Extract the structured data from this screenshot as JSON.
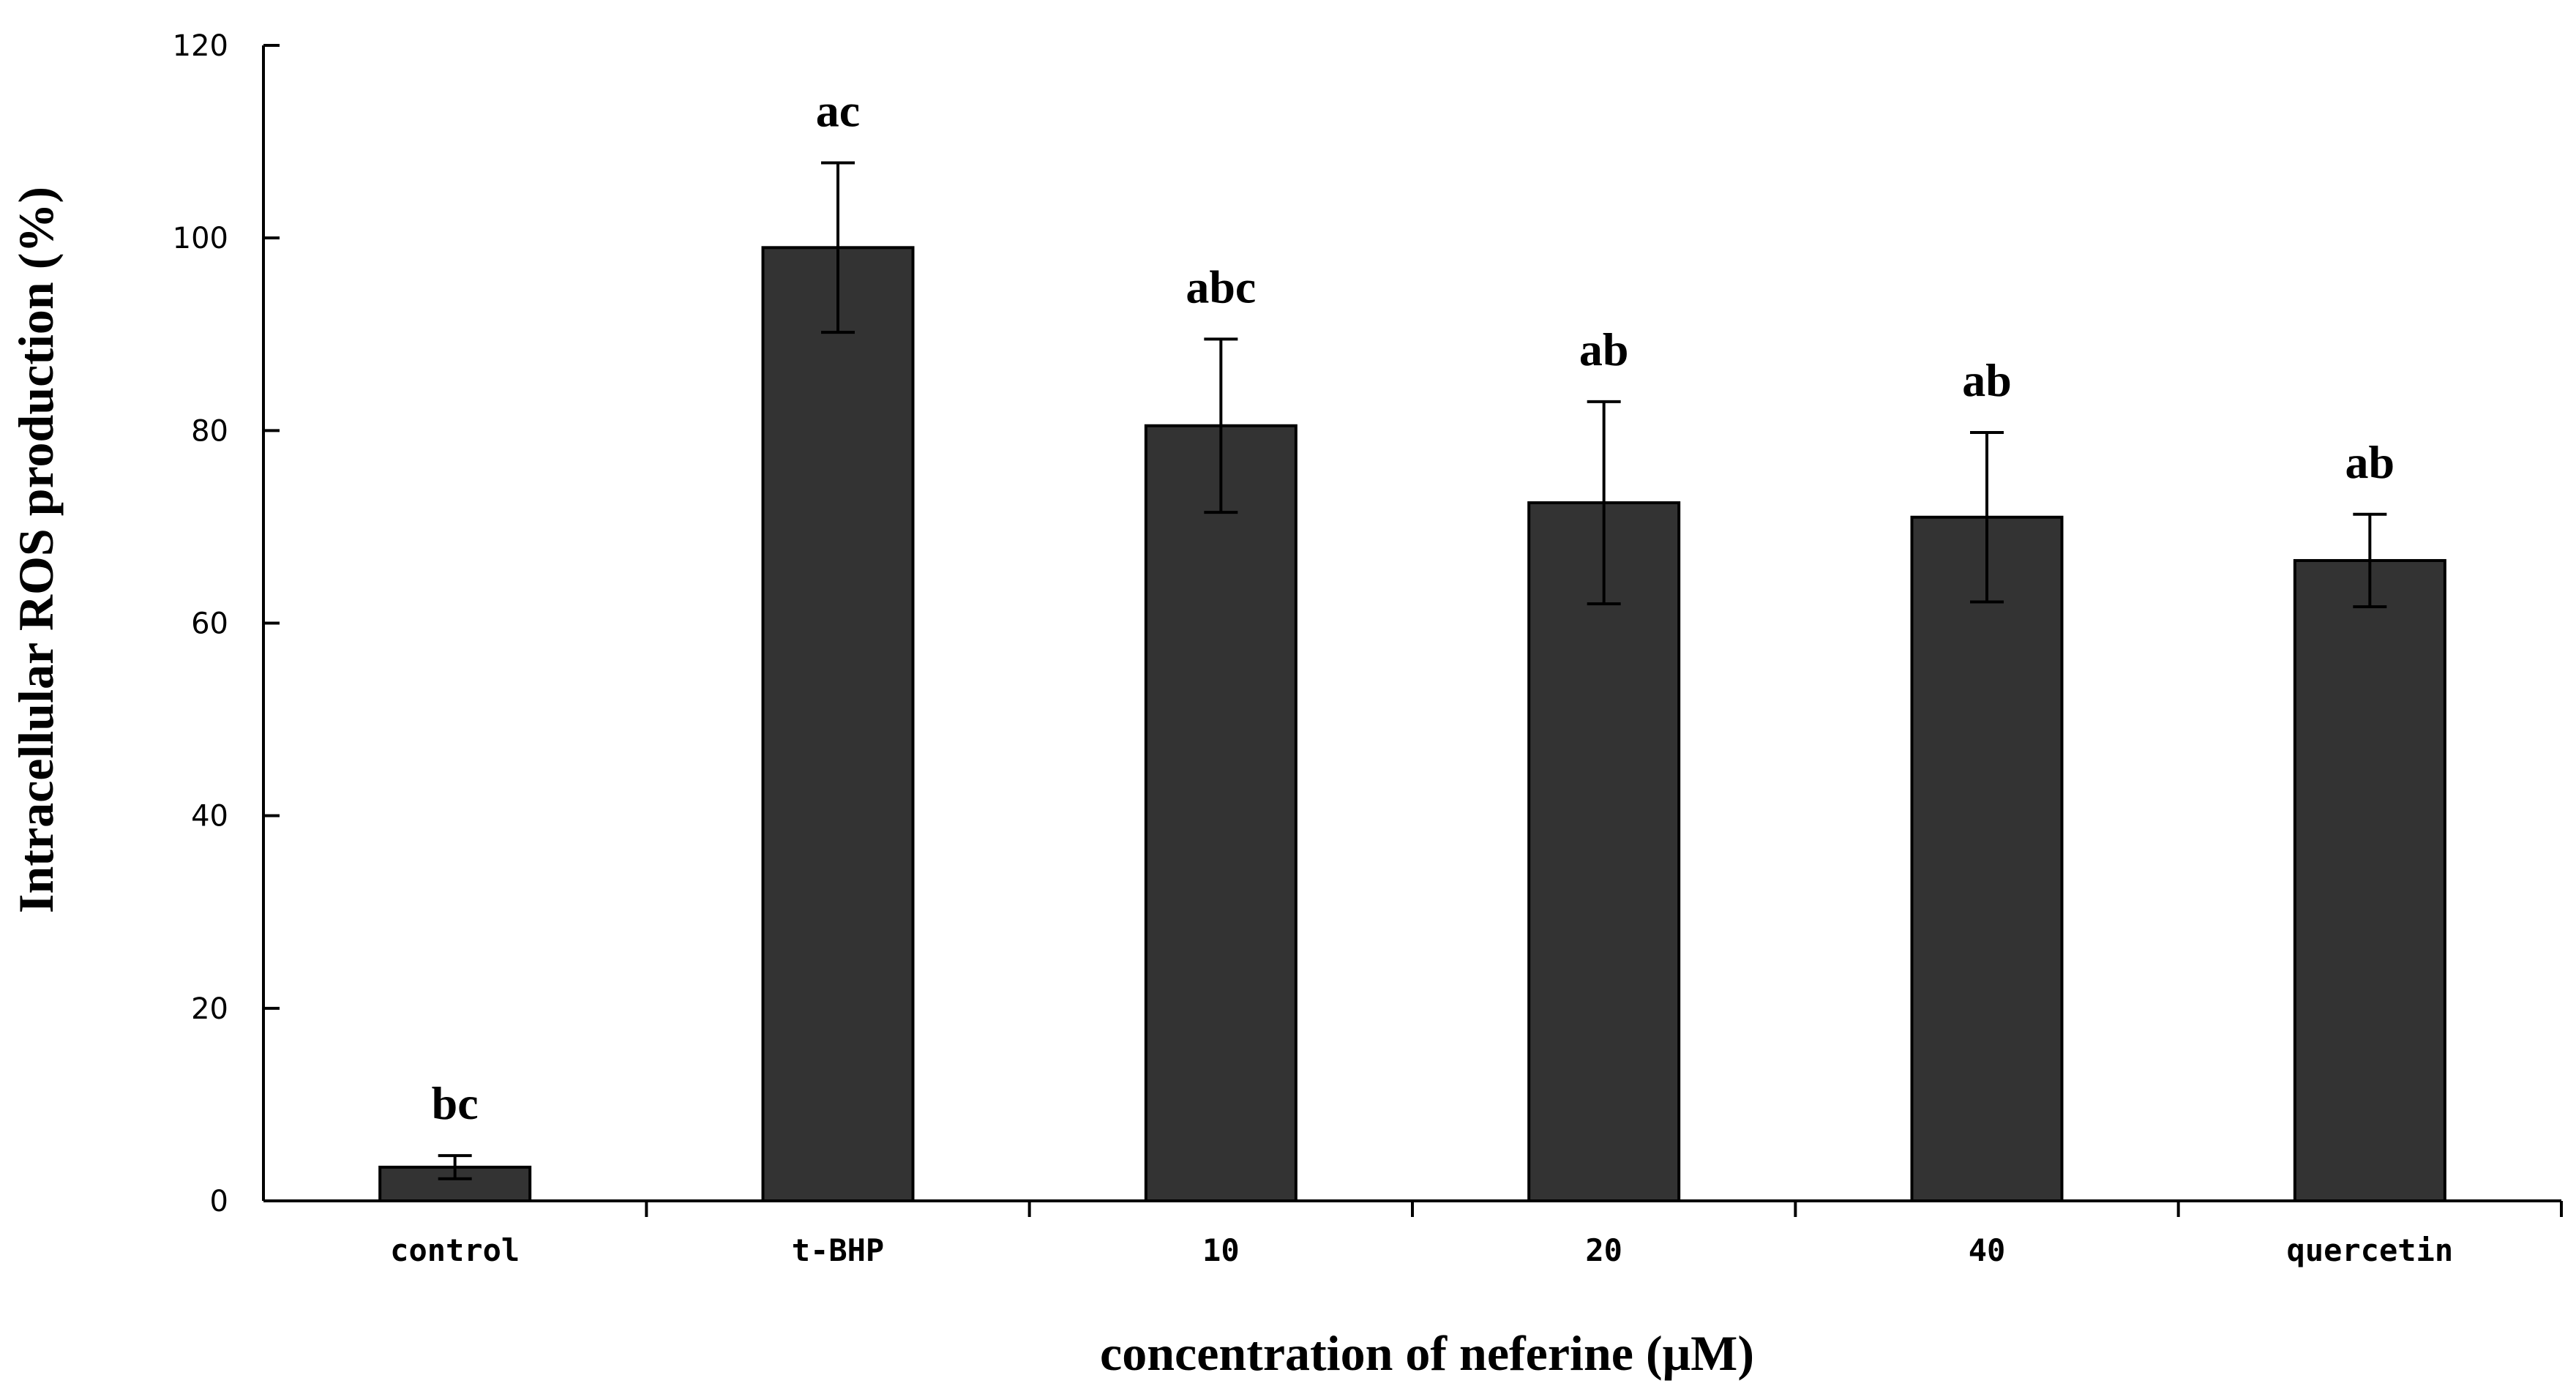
{
  "chart_data": {
    "type": "bar",
    "categories": [
      "control",
      "t-BHP",
      "10",
      "20",
      "40",
      "quercetin"
    ],
    "values": [
      3.5,
      99,
      80.5,
      72.5,
      71,
      66.5
    ],
    "errors": [
      1.2,
      8.8,
      9,
      10.5,
      8.8,
      4.8
    ],
    "significance": [
      "bc",
      "ac",
      "abc",
      "ab",
      "ab",
      "ab"
    ],
    "xlabel": "concentration of  neferine (μM)",
    "ylabel": "Intracellular ROS  production (%)",
    "ylim": [
      0,
      120
    ],
    "yticks": [
      0,
      20,
      40,
      60,
      80,
      100,
      120
    ],
    "bar_color": "#333333",
    "grid": false,
    "legend": "none"
  }
}
